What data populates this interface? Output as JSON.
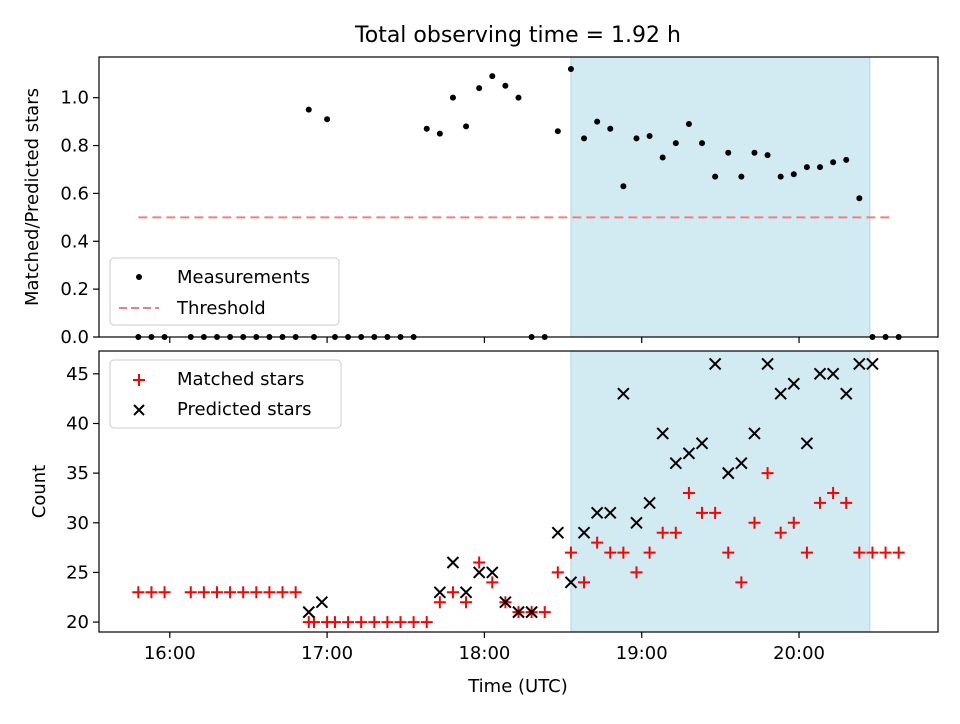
{
  "title": "Total observing time = 1.92 h",
  "colors": {
    "highlight": "#add8e6",
    "measure": "#000000",
    "threshold": "#f08080",
    "matched": "#ff0000",
    "predicted": "#000000"
  },
  "chart_data": [
    {
      "type": "scatter",
      "panel": "top",
      "ylabel": "Matched/Predicted stars",
      "xlabel": "",
      "xlim": [
        "15:33",
        "20:53"
      ],
      "ylim": [
        0,
        1.17
      ],
      "yticks": [
        "0.0",
        "0.2",
        "0.4",
        "0.6",
        "0.8",
        "1.0"
      ],
      "xticks": [
        "16:00",
        "17:00",
        "18:00",
        "19:00",
        "20:00"
      ],
      "highlight_span": [
        "18:33",
        "20:27"
      ],
      "legend": {
        "position": "lower left",
        "entries": [
          "Measurements",
          "Threshold"
        ]
      },
      "threshold": {
        "name": "Threshold",
        "value": 0.5,
        "x": [
          "15:48",
          "20:35"
        ]
      },
      "series": [
        {
          "name": "Measurements",
          "marker": "dot",
          "x": [
            "15:48",
            "15:53",
            "15:58",
            "16:08",
            "16:13",
            "16:18",
            "16:23",
            "16:28",
            "16:33",
            "16:38",
            "16:43",
            "16:48",
            "16:53",
            "16:55",
            "17:00",
            "17:03",
            "17:08",
            "17:13",
            "17:18",
            "17:23",
            "17:28",
            "17:33",
            "17:38",
            "17:43",
            "17:48",
            "17:53",
            "17:58",
            "18:03",
            "18:08",
            "18:13",
            "18:18",
            "18:23",
            "18:28",
            "18:33",
            "18:38",
            "18:43",
            "18:48",
            "18:53",
            "18:58",
            "19:03",
            "19:08",
            "19:13",
            "19:18",
            "19:23",
            "19:28",
            "19:33",
            "19:38",
            "19:43",
            "19:48",
            "19:53",
            "19:58",
            "20:03",
            "20:08",
            "20:13",
            "20:18",
            "20:23",
            "20:28",
            "20:33",
            "20:38"
          ],
          "y": [
            0,
            0,
            0,
            0,
            0,
            0,
            0,
            0,
            0,
            0,
            0,
            0,
            0.95,
            0,
            0.91,
            0,
            0,
            0,
            0,
            0,
            0,
            0,
            0.87,
            0.85,
            1.0,
            0.88,
            1.04,
            1.09,
            1.05,
            1.0,
            0,
            0,
            0.86,
            1.12,
            0.83,
            0.9,
            0.87,
            0.63,
            0.83,
            0.84,
            0.75,
            0.81,
            0.89,
            0.81,
            0.67,
            0.77,
            0.67,
            0.77,
            0.76,
            0.67,
            0.68,
            0.71,
            0.71,
            0.73,
            0.74,
            0.58,
            0,
            0,
            0
          ]
        }
      ]
    },
    {
      "type": "scatter",
      "panel": "bottom",
      "ylabel": "Count",
      "xlabel": "Time (UTC)",
      "xlim": [
        "15:33",
        "20:53"
      ],
      "ylim": [
        19,
        47.3
      ],
      "yticks": [
        "20",
        "25",
        "30",
        "35",
        "40",
        "45"
      ],
      "xticks": [
        "16:00",
        "17:00",
        "18:00",
        "19:00",
        "20:00"
      ],
      "highlight_span": [
        "18:33",
        "20:27"
      ],
      "legend": {
        "position": "upper left",
        "entries": [
          "Matched stars",
          "Predicted stars"
        ]
      },
      "series": [
        {
          "name": "Matched stars",
          "marker": "plus",
          "x": [
            "15:48",
            "15:53",
            "15:58",
            "16:08",
            "16:13",
            "16:18",
            "16:23",
            "16:28",
            "16:33",
            "16:38",
            "16:43",
            "16:48",
            "16:53",
            "16:55",
            "17:00",
            "17:03",
            "17:08",
            "17:13",
            "17:18",
            "17:23",
            "17:28",
            "17:33",
            "17:38",
            "17:43",
            "17:48",
            "17:53",
            "17:58",
            "18:03",
            "18:08",
            "18:13",
            "18:18",
            "18:23",
            "18:28",
            "18:33",
            "18:38",
            "18:43",
            "18:48",
            "18:53",
            "18:58",
            "19:03",
            "19:08",
            "19:13",
            "19:18",
            "19:23",
            "19:28",
            "19:33",
            "19:38",
            "19:43",
            "19:48",
            "19:53",
            "19:58",
            "20:03",
            "20:08",
            "20:13",
            "20:18",
            "20:23",
            "20:28",
            "20:33",
            "20:38"
          ],
          "y": [
            23,
            23,
            23,
            23,
            23,
            23,
            23,
            23,
            23,
            23,
            23,
            23,
            20,
            20,
            20,
            20,
            20,
            20,
            20,
            20,
            20,
            20,
            20,
            22,
            23,
            22,
            26,
            24,
            22,
            21,
            21,
            21,
            25,
            27,
            24,
            28,
            27,
            27,
            25,
            27,
            29,
            29,
            33,
            31,
            31,
            27,
            24,
            30,
            35,
            29,
            30,
            27,
            32,
            33,
            32,
            27,
            27,
            27,
            27
          ]
        },
        {
          "name": "Predicted stars",
          "marker": "x",
          "x": [
            "16:53",
            "16:58",
            "17:43",
            "17:48",
            "17:53",
            "17:58",
            "18:03",
            "18:08",
            "18:13",
            "18:18",
            "18:28",
            "18:33",
            "18:38",
            "18:43",
            "18:48",
            "18:53",
            "18:58",
            "19:03",
            "19:08",
            "19:13",
            "19:18",
            "19:23",
            "19:28",
            "19:33",
            "19:38",
            "19:43",
            "19:48",
            "19:53",
            "19:58",
            "20:03",
            "20:08",
            "20:13",
            "20:18",
            "20:23",
            "20:28"
          ],
          "y": [
            21,
            22,
            23,
            26,
            23,
            25,
            25,
            22,
            21,
            21,
            29,
            24,
            29,
            31,
            31,
            43,
            30,
            32,
            39,
            36,
            37,
            38,
            46,
            35,
            36,
            39,
            46,
            43,
            44,
            38,
            45,
            45,
            43,
            46,
            46
          ]
        }
      ]
    }
  ]
}
